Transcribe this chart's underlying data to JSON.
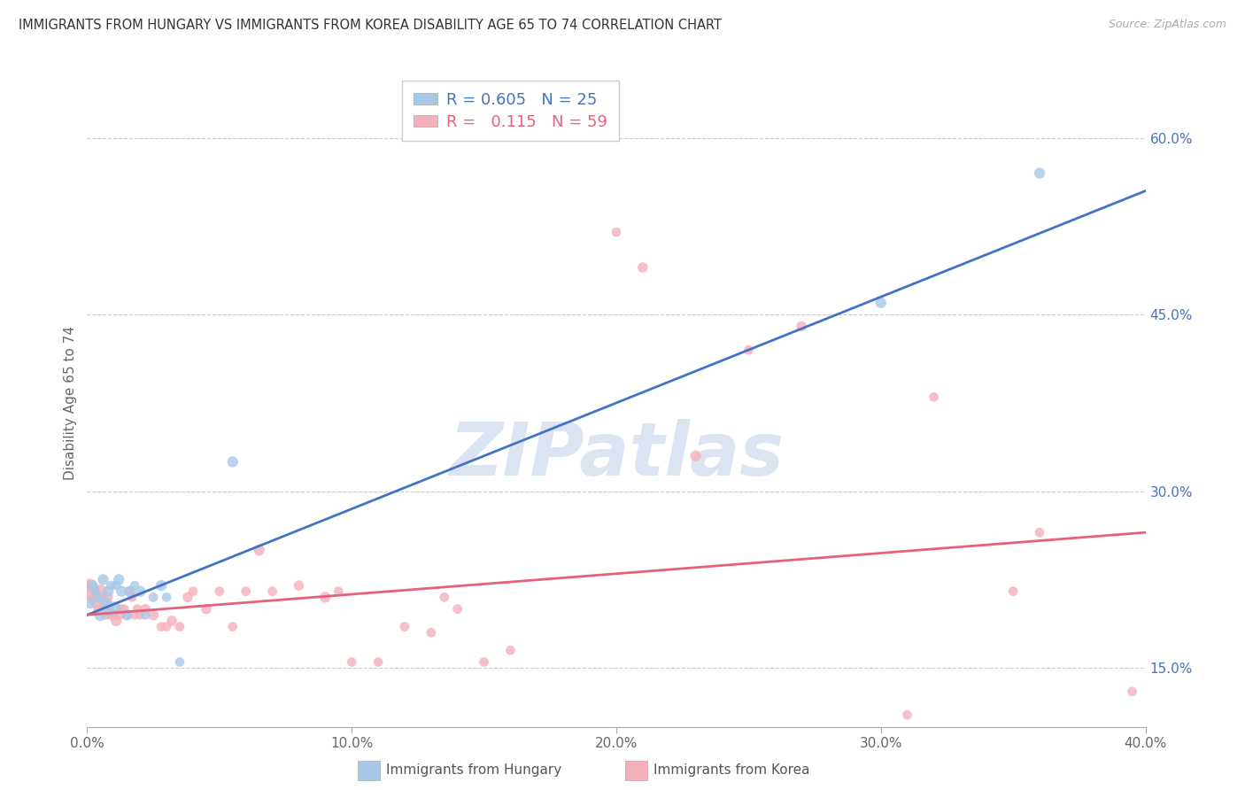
{
  "title": "IMMIGRANTS FROM HUNGARY VS IMMIGRANTS FROM KOREA DISABILITY AGE 65 TO 74 CORRELATION CHART",
  "source": "Source: ZipAtlas.com",
  "ylabel": "Disability Age 65 to 74",
  "xlim": [
    0.0,
    0.4
  ],
  "ylim": [
    0.1,
    0.65
  ],
  "yticks_right": [
    0.15,
    0.3,
    0.45,
    0.6
  ],
  "ytick_labels_right": [
    "15.0%",
    "30.0%",
    "45.0%",
    "60.0%"
  ],
  "xticks": [
    0.0,
    0.1,
    0.2,
    0.3,
    0.4
  ],
  "xtick_labels": [
    "0.0%",
    "10.0%",
    "20.0%",
    "30.0%",
    "40.0%"
  ],
  "hungary_color": "#a8c8e8",
  "korea_color": "#f4b0bc",
  "hungary_line_color": "#4472c4",
  "korea_line_color": "#e8607a",
  "legend_R_hungary": "0.605",
  "legend_N_hungary": "25",
  "legend_R_korea": "0.115",
  "legend_N_korea": "59",
  "watermark": "ZIPatlas",
  "hungary_x": [
    0.001,
    0.002,
    0.003,
    0.004,
    0.005,
    0.006,
    0.007,
    0.008,
    0.009,
    0.01,
    0.011,
    0.012,
    0.013,
    0.015,
    0.016,
    0.018,
    0.02,
    0.022,
    0.025,
    0.028,
    0.03,
    0.035,
    0.055,
    0.3,
    0.36
  ],
  "hungary_y": [
    0.205,
    0.22,
    0.215,
    0.21,
    0.195,
    0.225,
    0.205,
    0.215,
    0.22,
    0.2,
    0.22,
    0.225,
    0.215,
    0.195,
    0.215,
    0.22,
    0.215,
    0.195,
    0.21,
    0.22,
    0.21,
    0.155,
    0.325,
    0.46,
    0.57
  ],
  "hungary_sizes": [
    80,
    80,
    60,
    70,
    100,
    80,
    100,
    80,
    60,
    150,
    60,
    80,
    80,
    70,
    80,
    60,
    80,
    60,
    60,
    80,
    60,
    60,
    80,
    80,
    80
  ],
  "korea_x": [
    0.001,
    0.001,
    0.002,
    0.003,
    0.004,
    0.005,
    0.005,
    0.006,
    0.007,
    0.007,
    0.008,
    0.008,
    0.009,
    0.01,
    0.011,
    0.012,
    0.013,
    0.014,
    0.015,
    0.016,
    0.017,
    0.018,
    0.019,
    0.02,
    0.022,
    0.025,
    0.028,
    0.03,
    0.032,
    0.035,
    0.038,
    0.04,
    0.045,
    0.05,
    0.055,
    0.06,
    0.065,
    0.07,
    0.08,
    0.09,
    0.095,
    0.1,
    0.11,
    0.12,
    0.13,
    0.135,
    0.14,
    0.15,
    0.16,
    0.2,
    0.21,
    0.23,
    0.25,
    0.27,
    0.31,
    0.32,
    0.35,
    0.36,
    0.395
  ],
  "korea_y": [
    0.215,
    0.22,
    0.21,
    0.205,
    0.2,
    0.215,
    0.21,
    0.2,
    0.205,
    0.195,
    0.2,
    0.21,
    0.195,
    0.195,
    0.19,
    0.195,
    0.2,
    0.2,
    0.195,
    0.215,
    0.21,
    0.195,
    0.2,
    0.195,
    0.2,
    0.195,
    0.185,
    0.185,
    0.19,
    0.185,
    0.21,
    0.215,
    0.2,
    0.215,
    0.185,
    0.215,
    0.25,
    0.215,
    0.22,
    0.21,
    0.215,
    0.155,
    0.155,
    0.185,
    0.18,
    0.21,
    0.2,
    0.155,
    0.165,
    0.52,
    0.49,
    0.33,
    0.42,
    0.44,
    0.11,
    0.38,
    0.215,
    0.265,
    0.13
  ],
  "korea_sizes": [
    250,
    120,
    80,
    70,
    60,
    120,
    80,
    80,
    80,
    60,
    80,
    60,
    70,
    80,
    80,
    70,
    60,
    60,
    80,
    60,
    60,
    60,
    60,
    60,
    70,
    80,
    60,
    60,
    70,
    60,
    70,
    60,
    70,
    60,
    60,
    60,
    80,
    60,
    70,
    80,
    60,
    60,
    60,
    60,
    60,
    60,
    60,
    60,
    60,
    60,
    70,
    80,
    60,
    70,
    60,
    60,
    60,
    60,
    60
  ]
}
